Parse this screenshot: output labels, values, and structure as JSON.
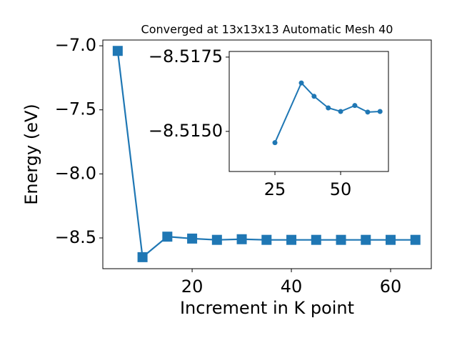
{
  "chart_data": [
    {
      "type": "line",
      "title": "Converged at 13x13x13 Automatic Mesh 40",
      "x_label": "Increment in K point",
      "y_label": "Energy (eV)",
      "x": [
        5,
        10,
        15,
        20,
        25,
        30,
        35,
        40,
        45,
        50,
        55,
        60,
        65
      ],
      "series": [
        {
          "color": "#1f77b4",
          "marker": "square",
          "values": [
            -7.04,
            -8.65,
            -8.49,
            -8.505,
            -8.515,
            -8.51,
            -8.515,
            -8.515,
            -8.515,
            -8.515,
            -8.515,
            -8.515,
            -8.515
          ]
        }
      ],
      "xlim": [
        2,
        68.2
      ],
      "ylim": [
        -8.74,
        -6.955
      ],
      "xticks": [
        20,
        40,
        60
      ],
      "yticks": [
        {
          "value": -7.0,
          "label": "−7.0"
        },
        {
          "value": -7.5,
          "label": "−7.5"
        },
        {
          "value": -8.0,
          "label": "−8.0"
        },
        {
          "value": -8.5,
          "label": "−8.5"
        }
      ]
    },
    {
      "type": "line",
      "x": [
        25,
        35.05,
        39.9,
        45.3,
        50,
        55.4,
        60.3,
        65
      ],
      "series": [
        {
          "color": "#1f77b4",
          "marker": "circle",
          "values": [
            -8.51462,
            -8.51663,
            -8.51618,
            -8.51579,
            -8.51567,
            -8.51587,
            -8.51565,
            -8.51567
          ]
        }
      ],
      "xlim": [
        7.6,
        68.2
      ],
      "ylim": [
        -8.51365,
        -8.51769
      ],
      "xticks": [
        25,
        50
      ],
      "yticks": [
        {
          "value": -8.5175,
          "label": "−8.5175"
        },
        {
          "value": -8.515,
          "label": "−8.5150"
        }
      ]
    }
  ]
}
